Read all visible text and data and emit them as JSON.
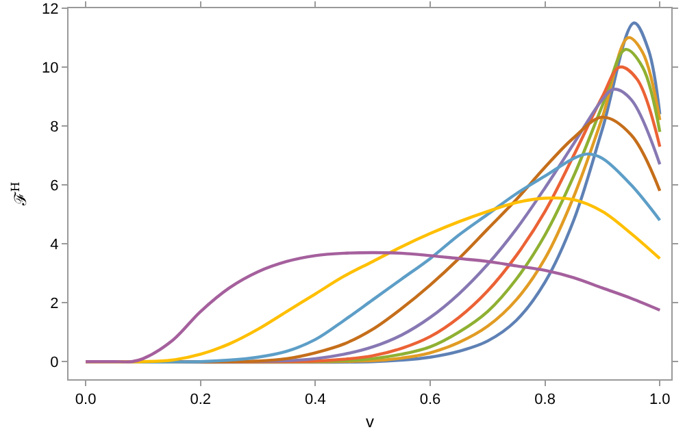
{
  "chart_data": {
    "type": "line",
    "xlabel": "v",
    "ylabel": "ℱ$^{H}$",
    "xlim": [
      -0.03,
      1.02
    ],
    "ylim": [
      -0.6,
      12
    ],
    "xticks": [
      {
        "value": 0,
        "label": "0.0"
      },
      {
        "value": 0.2,
        "label": "0.2"
      },
      {
        "value": 0.4,
        "label": "0.4"
      },
      {
        "value": 0.6,
        "label": "0.6"
      },
      {
        "value": 0.8,
        "label": "0.8"
      },
      {
        "value": 1,
        "label": "1.0"
      }
    ],
    "yticks": [
      0,
      2,
      4,
      6,
      8,
      10,
      12
    ],
    "marker": "none",
    "line_style": "solid",
    "series": [
      {
        "color": "#5e81b5",
        "x": [
          0,
          0.5,
          0.55,
          0.6,
          0.65,
          0.7,
          0.75,
          0.8,
          0.85,
          0.9,
          0.955,
          0.98,
          1
        ],
        "values": [
          0,
          0,
          0.05,
          0.15,
          0.35,
          0.7,
          1.4,
          2.7,
          4.8,
          7.9,
          11.5,
          10.6,
          8.4
        ]
      },
      {
        "color": "#e19c24",
        "x": [
          0,
          0.5,
          0.55,
          0.6,
          0.65,
          0.7,
          0.75,
          0.8,
          0.85,
          0.9,
          0.945,
          0.97,
          1
        ],
        "values": [
          0,
          0.03,
          0.12,
          0.3,
          0.65,
          1.2,
          2.1,
          3.5,
          5.6,
          8.3,
          11,
          10.5,
          8.2
        ]
      },
      {
        "color": "#8fb032",
        "x": [
          0,
          0.45,
          0.5,
          0.55,
          0.6,
          0.65,
          0.7,
          0.75,
          0.8,
          0.85,
          0.9,
          0.94,
          0.97,
          1
        ],
        "values": [
          0,
          0.03,
          0.1,
          0.25,
          0.5,
          1,
          1.7,
          2.8,
          4.3,
          6.3,
          8.7,
          10.6,
          10,
          7.8
        ]
      },
      {
        "color": "#eb6235",
        "x": [
          0,
          0.4,
          0.45,
          0.5,
          0.55,
          0.6,
          0.65,
          0.7,
          0.75,
          0.8,
          0.85,
          0.9,
          0.93,
          0.96,
          1
        ],
        "values": [
          0,
          0.02,
          0.08,
          0.2,
          0.45,
          0.85,
          1.5,
          2.4,
          3.6,
          5.1,
          7,
          9,
          10,
          9.6,
          7.3
        ]
      },
      {
        "color": "#8778b3",
        "x": [
          0,
          0.35,
          0.4,
          0.45,
          0.5,
          0.55,
          0.6,
          0.65,
          0.7,
          0.75,
          0.8,
          0.85,
          0.9,
          0.92,
          0.95,
          1
        ],
        "values": [
          0,
          0.03,
          0.1,
          0.25,
          0.5,
          0.9,
          1.5,
          2.3,
          3.3,
          4.5,
          5.9,
          7.4,
          8.9,
          9.25,
          8.9,
          6.7
        ]
      },
      {
        "color": "#c56e1a",
        "x": [
          0,
          0.3,
          0.35,
          0.4,
          0.45,
          0.5,
          0.55,
          0.6,
          0.65,
          0.7,
          0.75,
          0.8,
          0.85,
          0.9,
          0.95,
          1
        ],
        "values": [
          0,
          0.02,
          0.1,
          0.3,
          0.6,
          1.1,
          1.8,
          2.6,
          3.5,
          4.5,
          5.5,
          6.6,
          7.6,
          8.3,
          7.7,
          5.8
        ]
      },
      {
        "color": "#5d9ec7",
        "x": [
          0,
          0.2,
          0.25,
          0.3,
          0.35,
          0.4,
          0.45,
          0.5,
          0.55,
          0.6,
          0.65,
          0.7,
          0.75,
          0.8,
          0.85,
          0.875,
          0.9,
          0.95,
          1
        ],
        "values": [
          0,
          0,
          0.05,
          0.15,
          0.35,
          0.75,
          1.4,
          2.1,
          2.8,
          3.5,
          4.3,
          5,
          5.7,
          6.3,
          6.9,
          7.05,
          6.9,
          6,
          4.8
        ]
      },
      {
        "color": "#ffbf00",
        "x": [
          0,
          0.1,
          0.15,
          0.2,
          0.25,
          0.3,
          0.35,
          0.4,
          0.45,
          0.5,
          0.55,
          0.6,
          0.65,
          0.7,
          0.75,
          0.8,
          0.85,
          0.9,
          0.95,
          1
        ],
        "values": [
          0,
          0,
          0.05,
          0.25,
          0.6,
          1.1,
          1.7,
          2.3,
          2.9,
          3.4,
          3.9,
          4.35,
          4.75,
          5.1,
          5.4,
          5.55,
          5.5,
          5.1,
          4.35,
          3.5
        ]
      },
      {
        "color": "#a5609d",
        "x": [
          0,
          0.05,
          0.08,
          0.1,
          0.15,
          0.2,
          0.25,
          0.3,
          0.35,
          0.4,
          0.45,
          0.5,
          0.55,
          0.6,
          0.65,
          0.7,
          0.75,
          0.8,
          0.85,
          0.9,
          0.95,
          1
        ],
        "values": [
          0,
          0,
          0,
          0.1,
          0.7,
          1.7,
          2.5,
          3.05,
          3.4,
          3.6,
          3.68,
          3.7,
          3.68,
          3.6,
          3.5,
          3.4,
          3.25,
          3.1,
          2.85,
          2.5,
          2.15,
          1.75
        ]
      }
    ]
  }
}
